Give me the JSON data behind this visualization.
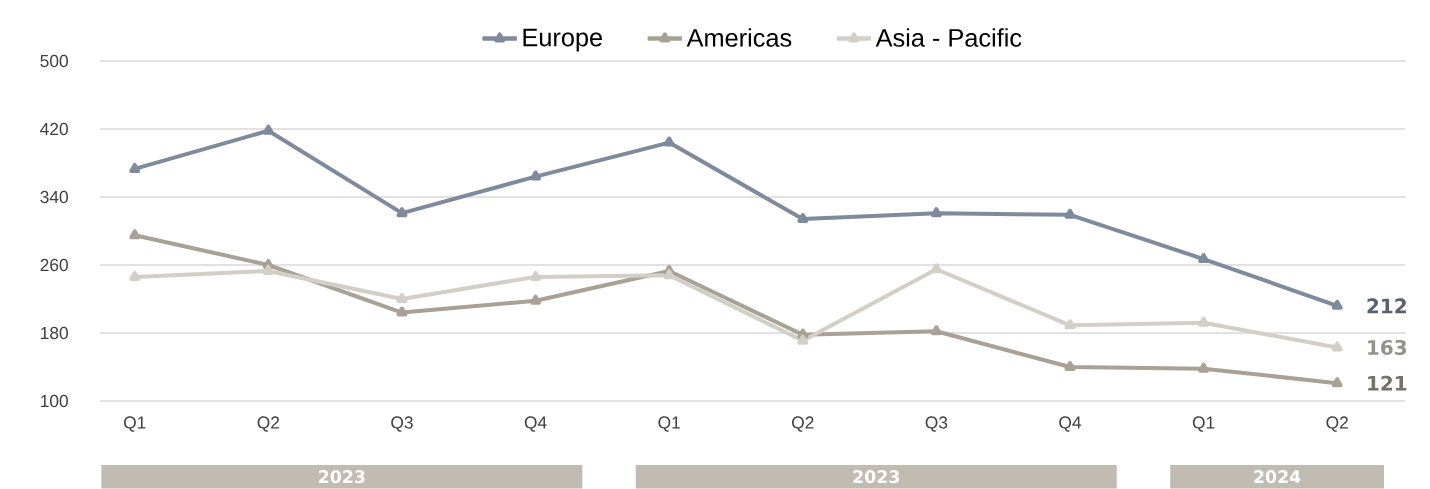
{
  "chart_data": {
    "type": "line",
    "categories": [
      "Q1",
      "Q2",
      "Q3",
      "Q4",
      "Q1",
      "Q2",
      "Q3",
      "Q4",
      "Q1",
      "Q2"
    ],
    "series": [
      {
        "name": "Europe",
        "color": "#7f8a9c",
        "values": [
          373,
          418,
          321,
          364,
          404,
          314,
          321,
          319,
          267,
          212
        ],
        "value_labels": [
          null,
          null,
          null,
          null,
          null,
          null,
          null,
          null,
          null,
          "212"
        ]
      },
      {
        "name": "Americas",
        "color": "#a9a196",
        "values": [
          295,
          260,
          204,
          218,
          253,
          178,
          182,
          140,
          138,
          121
        ],
        "value_labels": [
          null,
          null,
          null,
          null,
          null,
          null,
          null,
          null,
          null,
          "121"
        ]
      },
      {
        "name": "Asia - Pacific",
        "color": "#d3cfc6",
        "values": [
          246,
          253,
          220,
          246,
          248,
          171,
          255,
          189,
          192,
          163
        ],
        "value_labels": [
          null,
          null,
          null,
          null,
          null,
          null,
          null,
          null,
          null,
          "163"
        ]
      }
    ],
    "ylim": [
      100,
      500
    ],
    "yticks": [
      100,
      180,
      260,
      340,
      420,
      500
    ],
    "grid": "y",
    "legend": "top",
    "marker": "triangle",
    "line_style": "solid",
    "annotations": [
      "2023",
      "2023",
      "2024"
    ]
  }
}
